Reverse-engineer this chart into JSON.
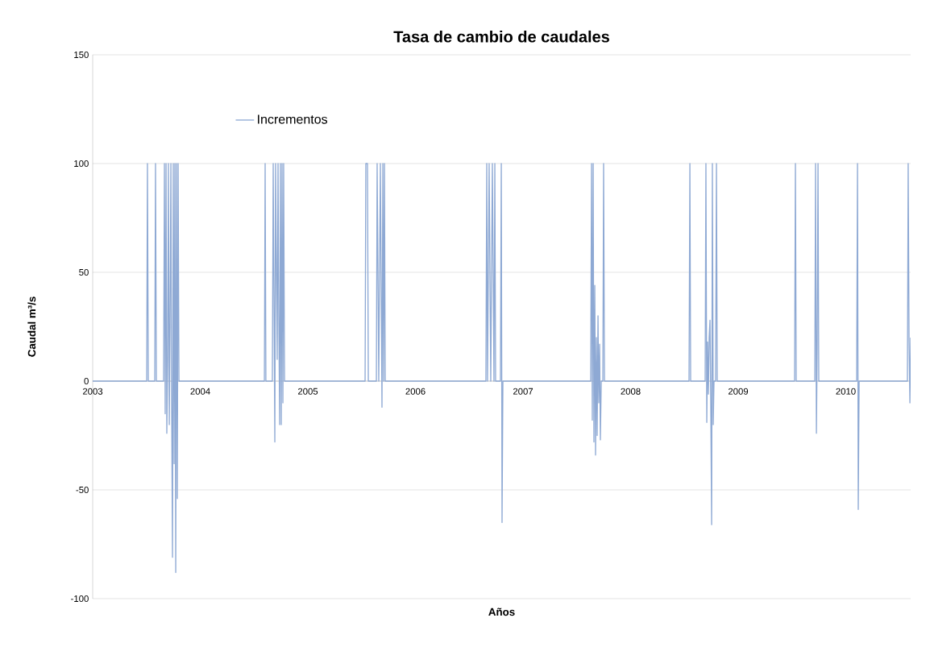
{
  "chart_data": {
    "type": "line",
    "title": "Tasa de cambio de caudales",
    "xlabel": "Años",
    "ylabel": "Caudal m³/s",
    "xlim": [
      2003,
      2010.603
    ],
    "xticks": [
      2003,
      2004,
      2005,
      2006,
      2007,
      2008,
      2009,
      2010
    ],
    "ylim": [
      -100,
      150
    ],
    "yticks": [
      -100,
      -50,
      0,
      50,
      100,
      150
    ],
    "grid": "y",
    "legend": "top left",
    "marker": "none",
    "line_style": "solid",
    "x": [
      2003.0,
      2003.502,
      2003.509,
      2003.517,
      2003.577,
      2003.584,
      2003.592,
      2003.659,
      2003.667,
      2003.674,
      2003.682,
      2003.689,
      2003.697,
      2003.704,
      2003.712,
      2003.719,
      2003.727,
      2003.734,
      2003.742,
      2003.749,
      2003.757,
      2003.764,
      2003.772,
      2003.779,
      2003.787,
      2003.794,
      2003.802,
      2004.596,
      2004.603,
      2004.61,
      2004.67,
      2004.678,
      2004.693,
      2004.7,
      2004.715,
      2004.723,
      2004.73,
      2004.738,
      2004.745,
      2004.753,
      2004.76,
      2004.768,
      2004.775,
      2004.783,
      2005.532,
      2005.539,
      2005.547,
      2005.554,
      2005.562,
      2005.637,
      2005.644,
      2005.659,
      2005.674,
      2005.689,
      2005.697,
      2005.704,
      2005.712,
      2005.719,
      2006.655,
      2006.663,
      2006.67,
      2006.685,
      2006.7,
      2006.715,
      2006.73,
      2006.738,
      2006.745,
      2006.79,
      2006.798,
      2006.805,
      2006.813,
      2007.629,
      2007.637,
      2007.644,
      2007.652,
      2007.659,
      2007.667,
      2007.674,
      2007.682,
      2007.689,
      2007.697,
      2007.704,
      2007.712,
      2007.719,
      2007.727,
      2007.742,
      2007.749,
      2007.757,
      2008.543,
      2008.551,
      2008.558,
      2008.693,
      2008.7,
      2008.708,
      2008.715,
      2008.723,
      2008.73,
      2008.738,
      2008.745,
      2008.753,
      2008.76,
      2008.768,
      2008.775,
      2008.79,
      2008.798,
      2008.805,
      2009.524,
      2009.532,
      2009.539,
      2009.712,
      2009.719,
      2009.727,
      2009.734,
      2009.742,
      2009.749,
      2010.101,
      2010.109,
      2010.116,
      2010.124,
      2010.573,
      2010.58,
      2010.588,
      2010.596,
      2010.603
    ],
    "series": [
      {
        "name": "Incrementos",
        "color": "#8ea9d4",
        "values": [
          0,
          0,
          100,
          0,
          0,
          100,
          0,
          0,
          100,
          -15,
          100,
          -24,
          10,
          100,
          -20,
          25,
          100,
          -10,
          -81,
          100,
          -38,
          100,
          -88,
          100,
          -54,
          100,
          0,
          0,
          100,
          0,
          0,
          100,
          -28,
          100,
          10,
          100,
          30,
          -20,
          100,
          -20,
          100,
          -10,
          100,
          0,
          0,
          100,
          100,
          100,
          0,
          0,
          100,
          0,
          100,
          -12,
          100,
          0,
          100,
          0,
          0,
          100,
          0,
          100,
          0,
          100,
          0,
          100,
          0,
          0,
          100,
          -65,
          0,
          0,
          100,
          -18,
          100,
          -28,
          44,
          -34,
          20,
          -25,
          30,
          -10,
          17,
          -27,
          0,
          0,
          100,
          0,
          0,
          100,
          0,
          0,
          100,
          -19,
          18,
          -6,
          20,
          28,
          -10,
          -66,
          100,
          -20,
          0,
          0,
          100,
          0,
          0,
          100,
          0,
          0,
          100,
          -24,
          15,
          100,
          0,
          0,
          100,
          -59,
          0,
          0,
          100,
          20,
          -10,
          20
        ]
      }
    ]
  }
}
